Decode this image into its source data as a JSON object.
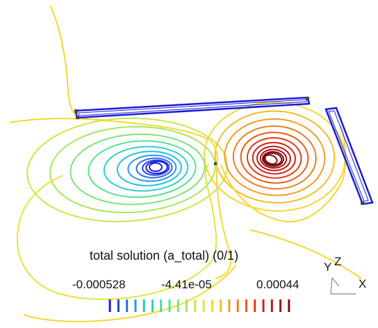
{
  "chart_data": {
    "type": "contour",
    "title": "total solution (a_total) (0/1)",
    "colorbar": {
      "ticks": [
        "-0.000528",
        "-4.41e-05",
        "0.00044"
      ],
      "min": -0.000528,
      "max": 0.00044,
      "levels": 22,
      "colors": [
        "#1a1ad8",
        "#2040e0",
        "#2a6ae8",
        "#2c96ea",
        "#28bce0",
        "#30d0c8",
        "#40dca8",
        "#58e090",
        "#7ce47a",
        "#a4e85c",
        "#c8e848",
        "#e6e43a",
        "#f4d830",
        "#f6bc26",
        "#f49c20",
        "#f07c1c",
        "#ea5a18",
        "#e23a16",
        "#d42016",
        "#c01414",
        "#a00e10",
        "#80080c"
      ]
    },
    "axes_triad": {
      "y": "Y",
      "z": "Z",
      "x": "X"
    },
    "extrema": [
      {
        "kind": "minimum",
        "value": -0.000528
      },
      {
        "kind": "maximum",
        "value": 0.00044
      }
    ]
  }
}
